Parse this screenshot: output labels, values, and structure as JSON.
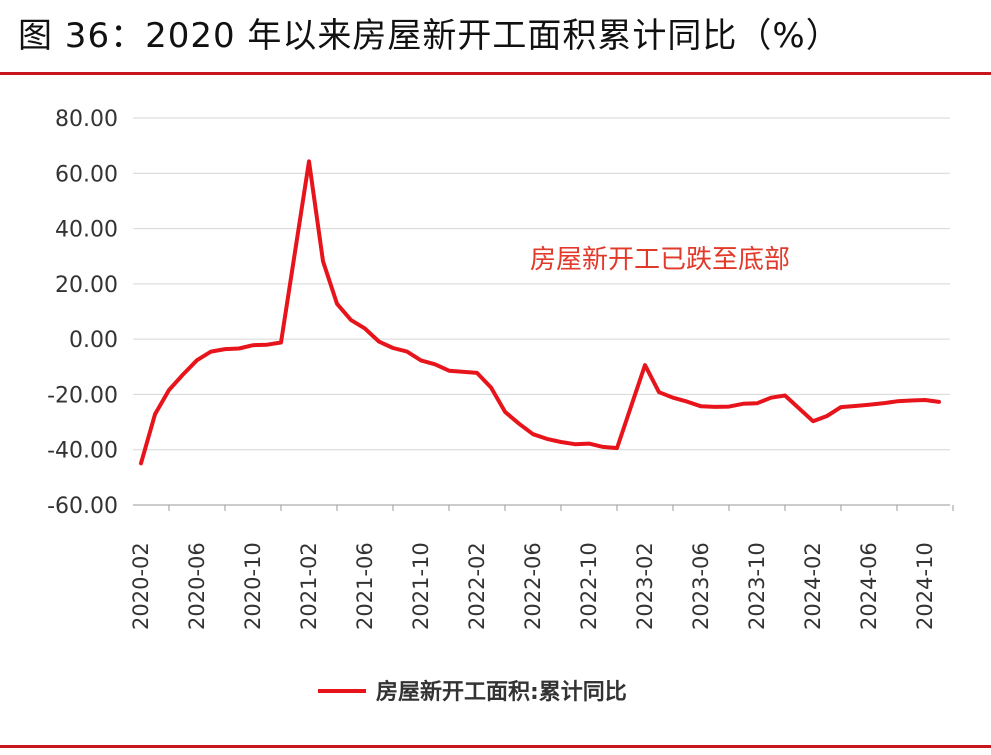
{
  "figure_title": "图 36：2020 年以来房屋新开工面积累计同比（%）",
  "colors": {
    "accent": "#c8161e",
    "series": "#e8141c",
    "annotation": "#e23a2a",
    "grid": "#d6d6d6"
  },
  "chart_data": {
    "type": "line",
    "title": "",
    "xlabel": "",
    "ylabel": "",
    "ylim": [
      -60,
      80
    ],
    "y_ticks": [
      "80.00",
      "60.00",
      "40.00",
      "20.00",
      "0.00",
      "-20.00",
      "-40.00",
      "-60.00"
    ],
    "x_tick_labels": [
      "2020-02",
      "2020-06",
      "2020-10",
      "2021-02",
      "2021-06",
      "2021-10",
      "2022-02",
      "2022-06",
      "2022-10",
      "2023-02",
      "2023-06",
      "2023-10",
      "2024-02",
      "2024-06",
      "2024-10"
    ],
    "grid": "horizontal",
    "legend_position": "bottom-center",
    "annotation": "房屋新开工已跌至底部",
    "series": [
      {
        "name": "房屋新开工面积:累计同比",
        "x": [
          "2020-02",
          "2020-03",
          "2020-04",
          "2020-05",
          "2020-06",
          "2020-07",
          "2020-08",
          "2020-09",
          "2020-10",
          "2020-11",
          "2020-12",
          "2021-02",
          "2021-03",
          "2021-04",
          "2021-05",
          "2021-06",
          "2021-07",
          "2021-08",
          "2021-09",
          "2021-10",
          "2021-11",
          "2021-12",
          "2022-02",
          "2022-03",
          "2022-04",
          "2022-05",
          "2022-06",
          "2022-07",
          "2022-08",
          "2022-09",
          "2022-10",
          "2022-11",
          "2022-12",
          "2023-02",
          "2023-03",
          "2023-04",
          "2023-05",
          "2023-06",
          "2023-07",
          "2023-08",
          "2023-09",
          "2023-10",
          "2023-11",
          "2023-12",
          "2024-02",
          "2024-03",
          "2024-04",
          "2024-05",
          "2024-06",
          "2024-07",
          "2024-08",
          "2024-09",
          "2024-10",
          "2024-11"
        ],
        "values": [
          -44.9,
          -27.2,
          -18.4,
          -12.8,
          -7.6,
          -4.5,
          -3.6,
          -3.4,
          -2.2,
          -2.0,
          -1.2,
          64.3,
          28.2,
          12.8,
          6.9,
          3.8,
          -0.9,
          -3.2,
          -4.5,
          -7.7,
          -9.1,
          -11.4,
          -12.2,
          -17.5,
          -26.3,
          -30.6,
          -34.4,
          -36.1,
          -37.2,
          -38.0,
          -37.8,
          -39.0,
          -39.4,
          -9.4,
          -19.2,
          -21.2,
          -22.6,
          -24.3,
          -24.5,
          -24.4,
          -23.4,
          -23.2,
          -21.2,
          -20.4,
          -29.7,
          -27.8,
          -24.6,
          -24.2,
          -23.7,
          -23.2,
          -22.5,
          -22.2,
          -22.0,
          -22.7
        ]
      }
    ]
  },
  "legend": {
    "label": "房屋新开工面积:累计同比"
  }
}
